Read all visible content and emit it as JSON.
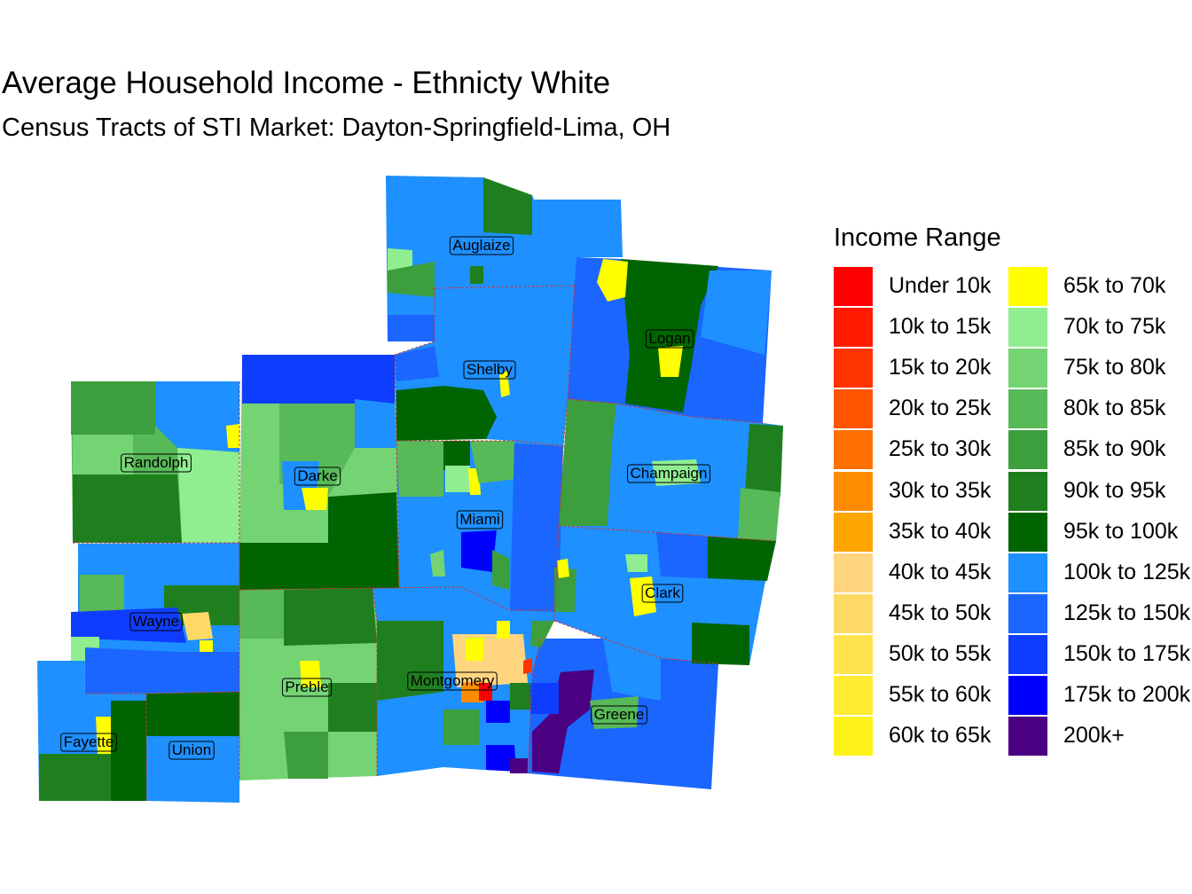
{
  "title": "Average Household Income - Ethnicty White",
  "subtitle": "Census Tracts of STI Market: Dayton-Springfield-Lima, OH",
  "legend": {
    "title": "Income Range",
    "items": [
      {
        "label": "Under 10k",
        "color": "#ff0000"
      },
      {
        "label": "10k to 15k",
        "color": "#ff1a00"
      },
      {
        "label": "15k to 20k",
        "color": "#ff3300"
      },
      {
        "label": "20k to 25k",
        "color": "#ff5500"
      },
      {
        "label": "25k to 30k",
        "color": "#ff7000"
      },
      {
        "label": "30k to 35k",
        "color": "#ff8c00"
      },
      {
        "label": "35k to 40k",
        "color": "#ffa500"
      },
      {
        "label": "40k to 45k",
        "color": "#ffd580"
      },
      {
        "label": "45k to 50k",
        "color": "#ffd966"
      },
      {
        "label": "50k to 55k",
        "color": "#ffe44d"
      },
      {
        "label": "55k to 60k",
        "color": "#ffec33"
      },
      {
        "label": "60k to 65k",
        "color": "#fff21a"
      },
      {
        "label": "65k to 70k",
        "color": "#ffff00"
      },
      {
        "label": "70k to 75k",
        "color": "#90ee90"
      },
      {
        "label": "75k to 80k",
        "color": "#74d474"
      },
      {
        "label": "80k to 85k",
        "color": "#58b958"
      },
      {
        "label": "85k to 90k",
        "color": "#3c9e3c"
      },
      {
        "label": "90k to 95k",
        "color": "#1f7f1f"
      },
      {
        "label": "95k to 100k",
        "color": "#006400"
      },
      {
        "label": "100k to 125k",
        "color": "#1e90ff"
      },
      {
        "label": "125k to 150k",
        "color": "#1a66ff"
      },
      {
        "label": "150k to 175k",
        "color": "#0f3dff"
      },
      {
        "label": "175k to 200k",
        "color": "#0000ff"
      },
      {
        "label": "200k+",
        "color": "#4b0082"
      }
    ]
  },
  "counties": [
    {
      "name": "Auglaize"
    },
    {
      "name": "Shelby"
    },
    {
      "name": "Logan"
    },
    {
      "name": "Randolph"
    },
    {
      "name": "Darke"
    },
    {
      "name": "Miami"
    },
    {
      "name": "Champaign"
    },
    {
      "name": "Clark"
    },
    {
      "name": "Wayne"
    },
    {
      "name": "Preble"
    },
    {
      "name": "Montgomery"
    },
    {
      "name": "Greene"
    },
    {
      "name": "Fayette"
    },
    {
      "name": "Union"
    }
  ]
}
